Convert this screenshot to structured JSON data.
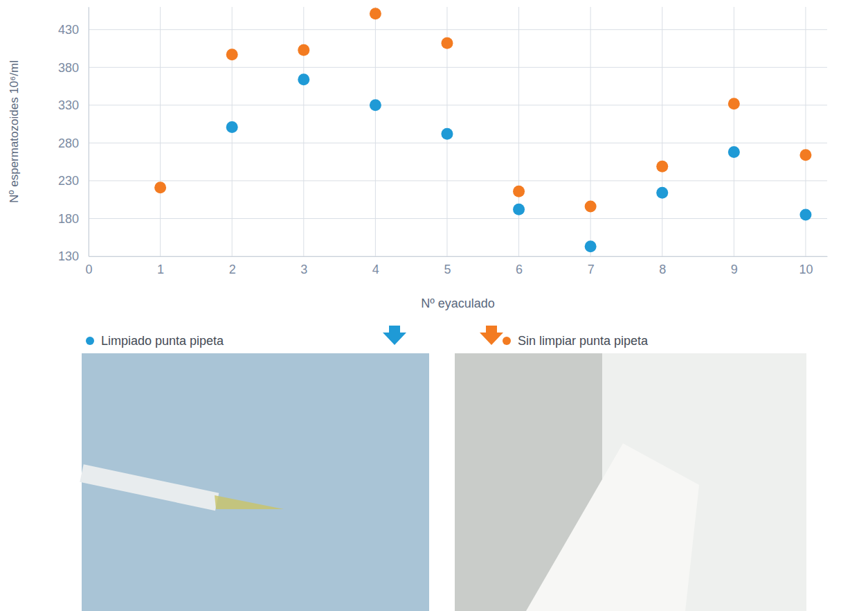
{
  "chart_data": {
    "type": "scatter",
    "x_label": "Nº eyaculado",
    "y_label": "Nº espermatozoides 10⁶/ml",
    "x": [
      1,
      2,
      3,
      4,
      5,
      6,
      7,
      8,
      9,
      10
    ],
    "series": [
      {
        "name": "Limpiado punta pipeta",
        "color": "#1f9ad6",
        "marker": "circle",
        "values": [
          null,
          301,
          364,
          330,
          292,
          192,
          143,
          214,
          268,
          185
        ]
      },
      {
        "name": "Sin limpiar punta pipeta",
        "color": "#f37b21",
        "marker": "circle",
        "values": [
          221,
          397,
          403,
          451,
          412,
          216,
          196,
          249,
          332,
          264
        ]
      }
    ],
    "xlim": [
      0,
      10.3
    ],
    "xticks": [
      0,
      1,
      2,
      3,
      4,
      5,
      6,
      7,
      8,
      9,
      10
    ],
    "ylim": [
      130,
      460
    ],
    "yticks": [
      130,
      180,
      230,
      280,
      330,
      380,
      430
    ],
    "grid": true,
    "legend": "bottom"
  }
}
